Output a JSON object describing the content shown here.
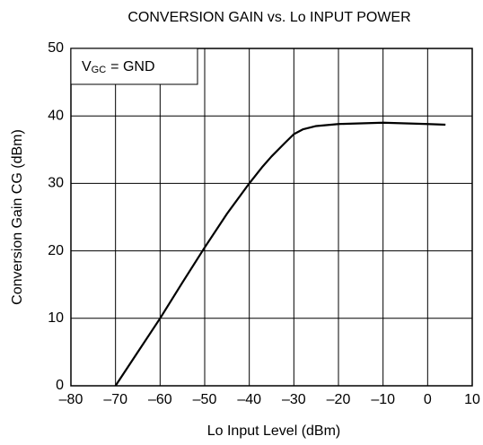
{
  "chart_data": {
    "type": "line",
    "title": "CONVERSION GAIN vs. Lo INPUT POWER",
    "x_label": "Lo Input Level  (dBm)",
    "y_label": "Conversion Gain  CG  (dBm)",
    "annotation": {
      "main": "V",
      "sub": "GC",
      "rest": "= GND"
    },
    "xlim": [
      -80,
      10
    ],
    "ylim": [
      0,
      50
    ],
    "xticks": [
      {
        "value": -80,
        "label": "–80"
      },
      {
        "value": -70,
        "label": "–70"
      },
      {
        "value": -60,
        "label": "–60"
      },
      {
        "value": -50,
        "label": "–50"
      },
      {
        "value": -40,
        "label": "–40"
      },
      {
        "value": -30,
        "label": "–30"
      },
      {
        "value": -20,
        "label": "–20"
      },
      {
        "value": -10,
        "label": "–10"
      },
      0,
      10
    ],
    "yticks": [
      0,
      10,
      20,
      30,
      40,
      50
    ],
    "grid": true,
    "series": [
      {
        "color": "#000000",
        "x": [
          -70,
          -65,
          -60,
          -55,
          -50,
          -45,
          -40,
          -37,
          -35,
          -32,
          -30,
          -28,
          -25,
          -20,
          -15,
          -10,
          -5,
          0,
          4
        ],
        "y": [
          0,
          5,
          10,
          15.3,
          20.5,
          25.5,
          30,
          32.5,
          34,
          36,
          37.3,
          38,
          38.5,
          38.8,
          38.9,
          39,
          38.9,
          38.8,
          38.7
        ]
      }
    ]
  }
}
